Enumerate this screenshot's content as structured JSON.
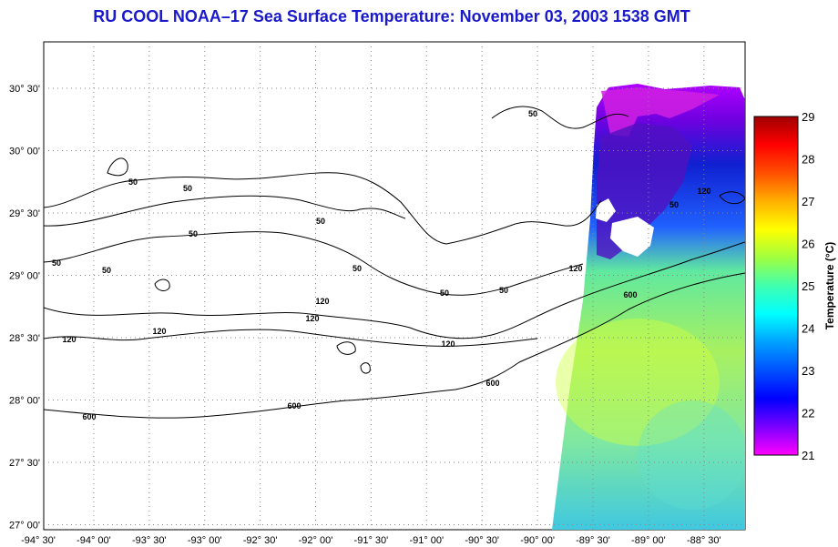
{
  "title": "RU COOL  NOAA–17  Sea Surface Temperature:  November 03, 2003 1538 GMT",
  "colorbar": {
    "label": "Temperature (°C)",
    "ticks": [
      "29",
      "28",
      "27",
      "26",
      "25",
      "24",
      "23",
      "22",
      "21"
    ],
    "range": [
      21,
      29
    ],
    "colors": [
      "#ff00ff",
      "#7a00ff",
      "#0000ff",
      "#0050ff",
      "#00a0ff",
      "#00ffff",
      "#40ffb0",
      "#a0ff40",
      "#ffff00",
      "#ffb000",
      "#ff5000",
      "#ff0000",
      "#a00000"
    ]
  },
  "axes": {
    "x_ticks": [
      "-94° 30'",
      "-94° 00'",
      "-93° 30'",
      "-93° 00'",
      "-92° 30'",
      "-92° 00'",
      "-91° 30'",
      "-91° 00'",
      "-90° 30'",
      "-90° 00'",
      "-89° 30'",
      "-89° 00'",
      "-88° 30'"
    ],
    "y_ticks": [
      "30° 30'",
      "30° 00'",
      "29° 30'",
      "29° 00'",
      "28° 30'",
      "28° 00'",
      "27° 30'",
      "27° 00'"
    ],
    "lon_range": [
      -94.5,
      -88.25
    ],
    "lat_range": [
      26.95,
      30.75
    ]
  },
  "contour_labels": [
    "50",
    "50",
    "50",
    "50",
    "50",
    "50",
    "50",
    "50",
    "50",
    "50",
    "50",
    "120",
    "120",
    "120",
    "120",
    "120",
    "120",
    "120",
    "600",
    "600",
    "600",
    "600"
  ]
}
